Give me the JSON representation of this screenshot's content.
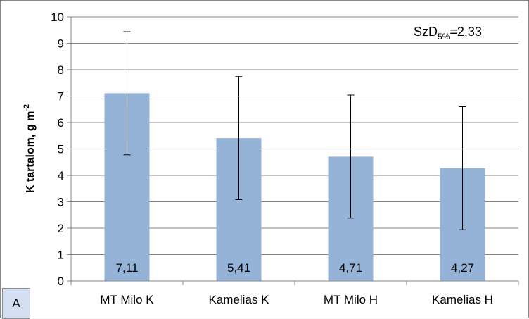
{
  "chart_data": {
    "type": "bar",
    "categories": [
      "MT Milo K",
      "Kamelias K",
      "MT Milo H",
      "Kamelias H"
    ],
    "series": [
      {
        "values": [
          7.11,
          5.41,
          4.71,
          4.27
        ],
        "value_labels": [
          "7,11",
          "5,41",
          "4,71",
          "4,27"
        ],
        "error_plus": [
          2.33,
          2.33,
          2.33,
          2.33
        ],
        "error_minus": [
          2.33,
          2.33,
          2.33,
          2.33
        ],
        "color": "#95b3d7"
      }
    ],
    "ylabel_main": "K tartalom, g m",
    "ylabel_sup": "-2",
    "ylim": [
      0,
      10
    ],
    "yticks": [
      "0",
      "1",
      "2",
      "3",
      "4",
      "5",
      "6",
      "7",
      "8",
      "9",
      "10"
    ],
    "grid": true,
    "annotation": {
      "text": "SzD",
      "sub": "5%",
      "rest": "=2,33"
    },
    "panel_label": "A"
  }
}
